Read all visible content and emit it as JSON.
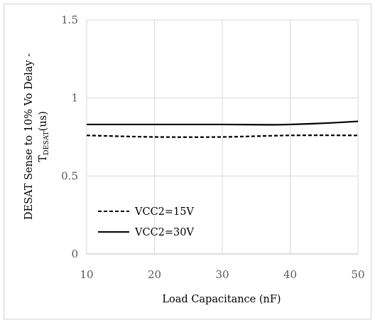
{
  "chart_data": {
    "type": "line",
    "title": "",
    "xlabel": "Load Capacitance (nF)",
    "ylabel": {
      "main": "DESAT Sense to 10% Vo Delay -",
      "base": "T",
      "sub": "DESAT",
      "unit": "(us)"
    },
    "xlim": [
      10,
      50
    ],
    "ylim": [
      0,
      1.5
    ],
    "xticks": [
      "10",
      "20",
      "30",
      "40",
      "50"
    ],
    "yticks": [
      "0",
      "0.5",
      "1",
      "1.5"
    ],
    "grid": true,
    "legend_position": "lower-left",
    "series": [
      {
        "name": "VCC2=15V",
        "style": "dashed",
        "color": "#000000",
        "x": [
          10,
          20,
          30,
          40,
          50
        ],
        "y": [
          0.76,
          0.75,
          0.75,
          0.76,
          0.76
        ]
      },
      {
        "name": "VCC2=30V",
        "style": "solid",
        "color": "#000000",
        "x": [
          10,
          20,
          30,
          37,
          40,
          45,
          50
        ],
        "y": [
          0.83,
          0.83,
          0.83,
          0.828,
          0.83,
          0.838,
          0.85
        ]
      }
    ]
  }
}
